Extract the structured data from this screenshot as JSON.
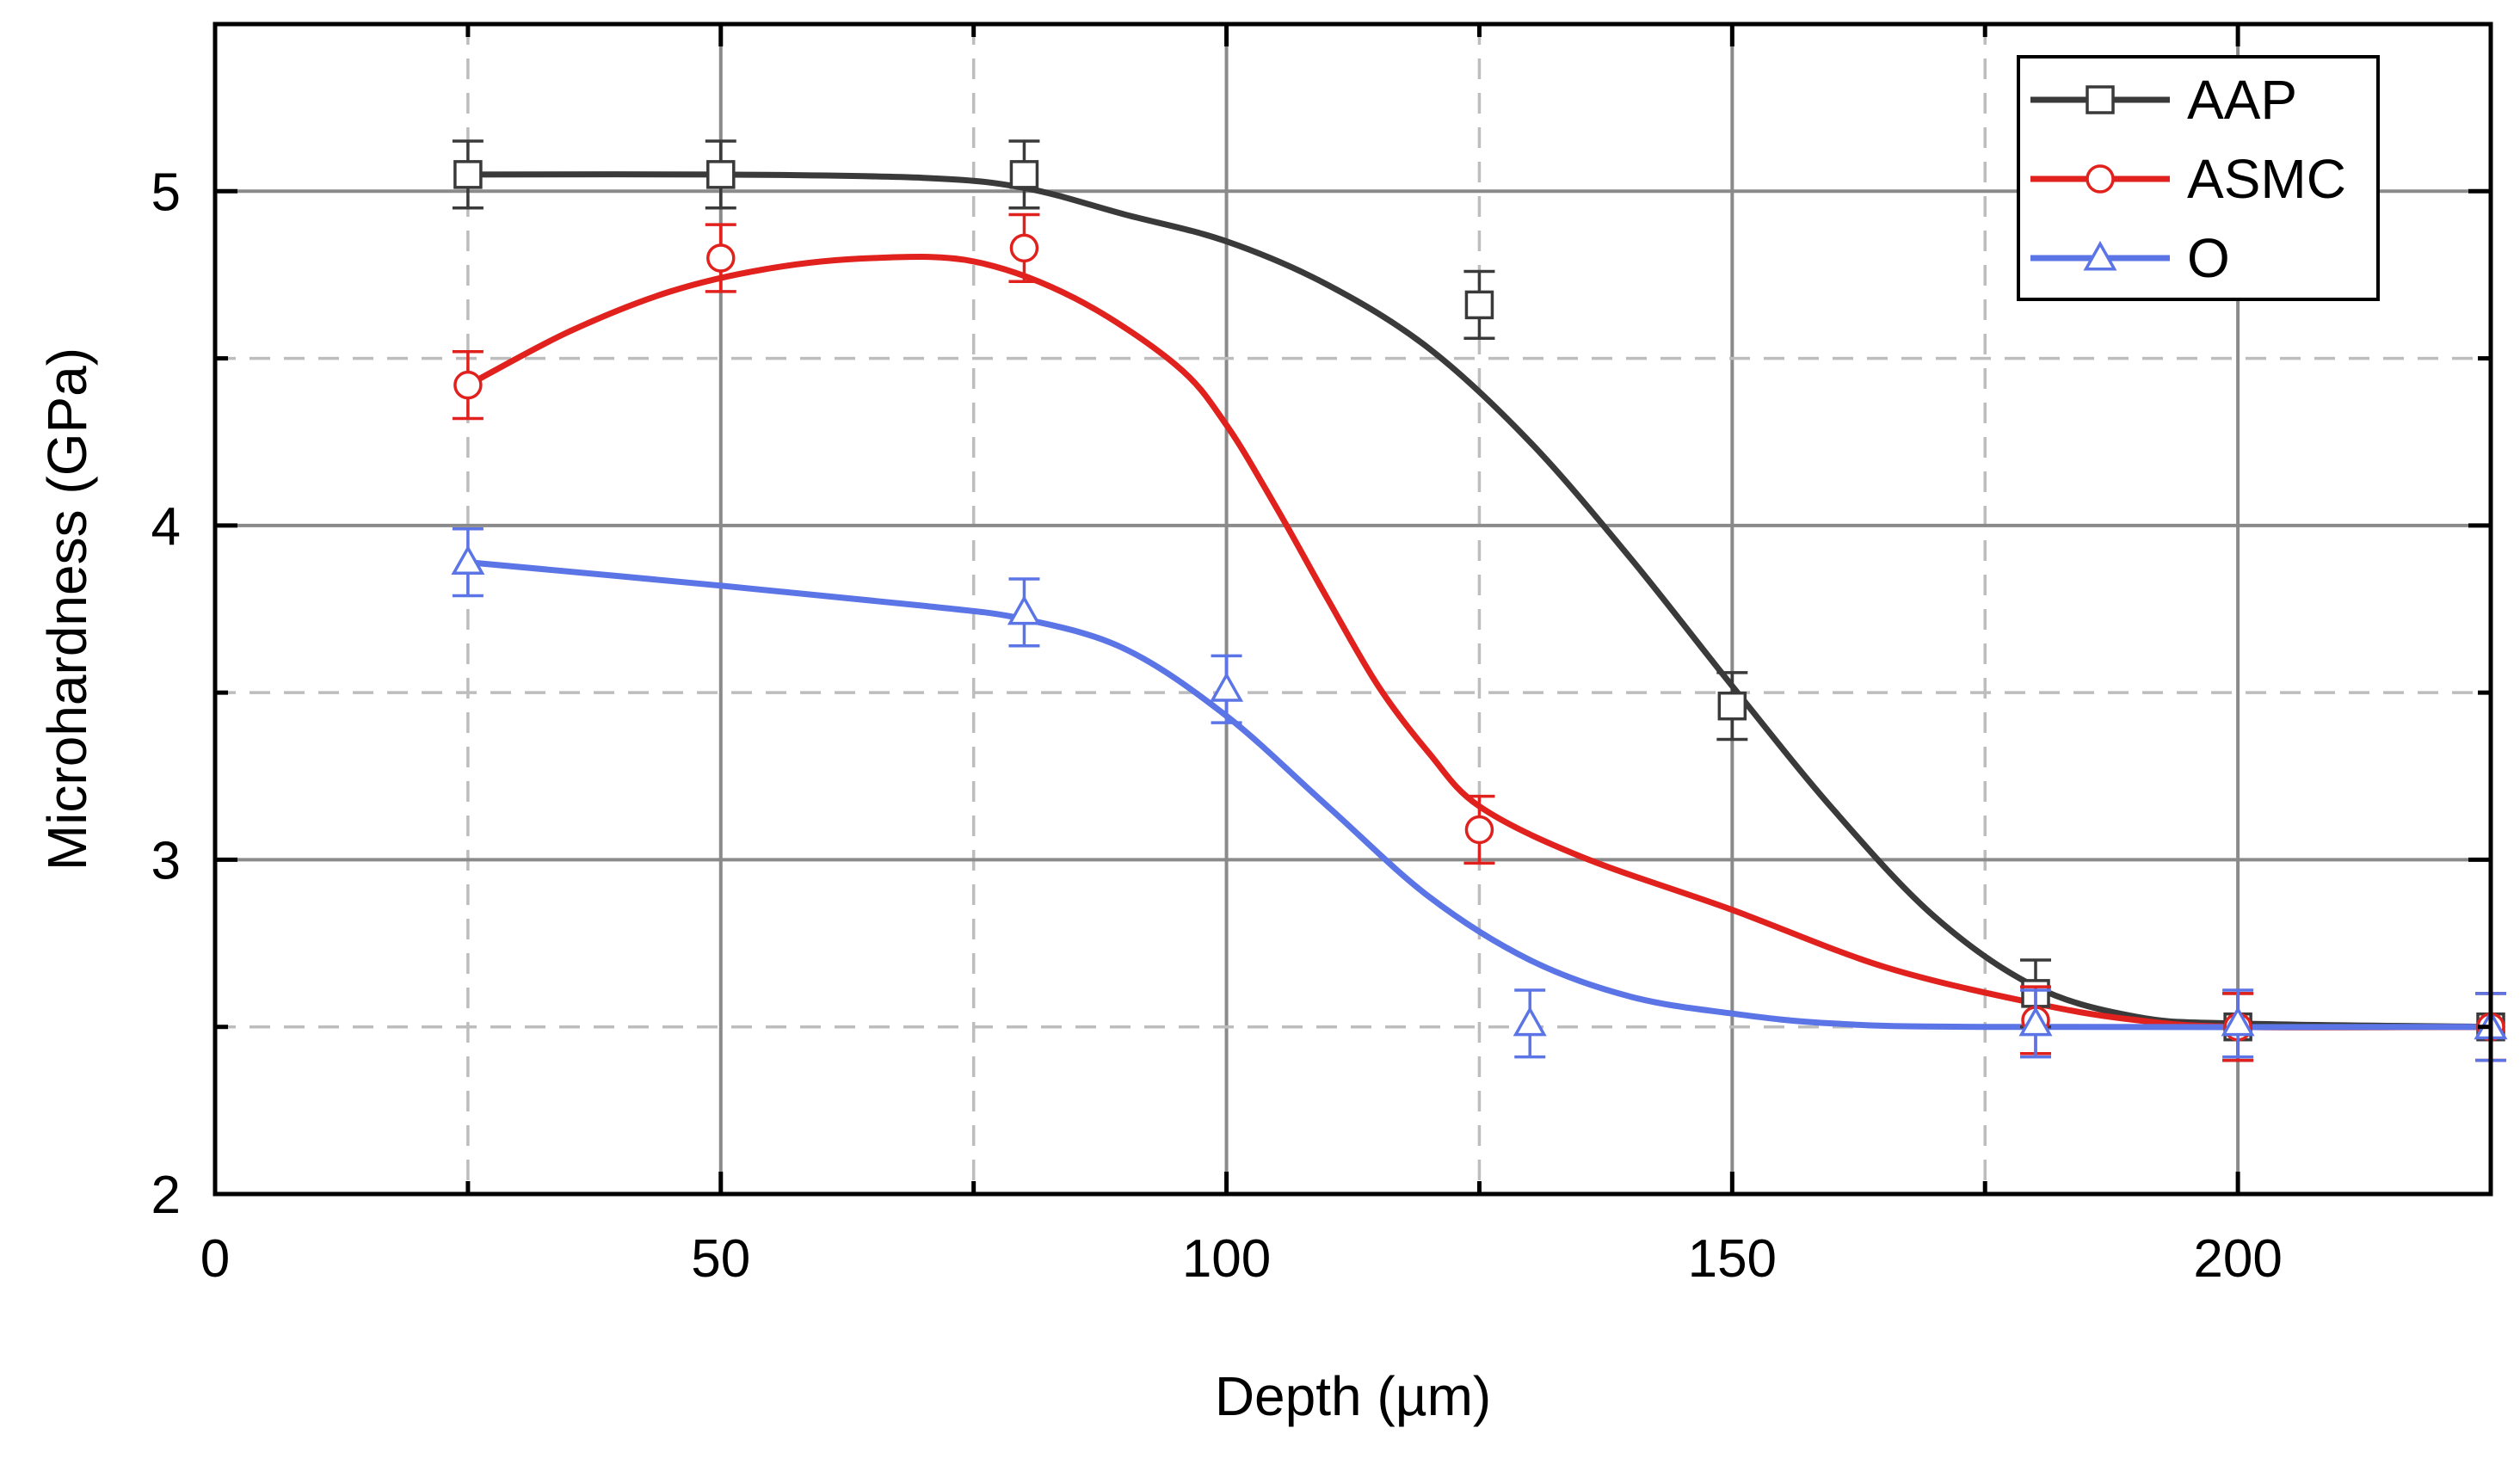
{
  "chart_data": {
    "type": "scatter",
    "title": "",
    "xlabel": "Depth (µm)",
    "ylabel": "Microhardness (GPa)",
    "xlim": [
      0,
      225
    ],
    "ylim": [
      2,
      5.5
    ],
    "x_ticks": [
      "0",
      "50",
      "100",
      "150",
      "200"
    ],
    "y_ticks": [
      "2",
      "3",
      "4",
      "5"
    ],
    "grid": true,
    "legend_position": "top-right",
    "series": [
      {
        "name": "AAP",
        "color": "#3a3a3a",
        "marker": "square",
        "points": [
          {
            "x": 25,
            "y": 5.05,
            "err": 0.1
          },
          {
            "x": 50,
            "y": 5.05,
            "err": 0.1
          },
          {
            "x": 80,
            "y": 5.05,
            "err": 0.1
          },
          {
            "x": 125,
            "y": 4.66,
            "err": 0.1
          },
          {
            "x": 150,
            "y": 3.46,
            "err": 0.1
          },
          {
            "x": 180,
            "y": 2.6,
            "err": 0.1
          },
          {
            "x": 200,
            "y": 2.5,
            "err": 0.1
          },
          {
            "x": 225,
            "y": 2.5,
            "err": 0.1
          }
        ],
        "fit": [
          [
            25,
            5.05
          ],
          [
            50,
            5.05
          ],
          [
            70,
            5.04
          ],
          [
            80,
            5.01
          ],
          [
            90,
            4.93
          ],
          [
            100,
            4.85
          ],
          [
            110,
            4.72
          ],
          [
            120,
            4.53
          ],
          [
            130,
            4.25
          ],
          [
            140,
            3.9
          ],
          [
            150,
            3.52
          ],
          [
            160,
            3.15
          ],
          [
            170,
            2.83
          ],
          [
            180,
            2.62
          ],
          [
            190,
            2.53
          ],
          [
            200,
            2.51
          ],
          [
            225,
            2.5
          ]
        ]
      },
      {
        "name": "ASMC",
        "color": "#e0211d",
        "marker": "circle",
        "points": [
          {
            "x": 25,
            "y": 4.42,
            "err": 0.1
          },
          {
            "x": 50,
            "y": 4.8,
            "err": 0.1
          },
          {
            "x": 80,
            "y": 4.83,
            "err": 0.1
          },
          {
            "x": 125,
            "y": 3.09,
            "err": 0.1
          },
          {
            "x": 180,
            "y": 2.52,
            "err": 0.1
          },
          {
            "x": 200,
            "y": 2.5,
            "err": 0.1
          },
          {
            "x": 225,
            "y": 2.5,
            "err": 0.1
          }
        ],
        "fit": [
          [
            25,
            4.42
          ],
          [
            35,
            4.58
          ],
          [
            45,
            4.7
          ],
          [
            55,
            4.77
          ],
          [
            65,
            4.8
          ],
          [
            75,
            4.79
          ],
          [
            85,
            4.68
          ],
          [
            95,
            4.48
          ],
          [
            100,
            4.3
          ],
          [
            105,
            4.05
          ],
          [
            110,
            3.78
          ],
          [
            115,
            3.52
          ],
          [
            120,
            3.32
          ],
          [
            125,
            3.16
          ],
          [
            135,
            3.01
          ],
          [
            150,
            2.85
          ],
          [
            165,
            2.68
          ],
          [
            180,
            2.57
          ],
          [
            190,
            2.52
          ],
          [
            200,
            2.5
          ],
          [
            225,
            2.5
          ]
        ]
      },
      {
        "name": "O",
        "color": "#5b74e6",
        "marker": "triangle",
        "points": [
          {
            "x": 25,
            "y": 3.89,
            "err": 0.1
          },
          {
            "x": 80,
            "y": 3.74,
            "err": 0.1
          },
          {
            "x": 100,
            "y": 3.51,
            "err": 0.1
          },
          {
            "x": 130,
            "y": 2.51,
            "err": 0.1
          },
          {
            "x": 180,
            "y": 2.51,
            "err": 0.1
          },
          {
            "x": 200,
            "y": 2.51,
            "err": 0.1
          },
          {
            "x": 225,
            "y": 2.5,
            "err": 0.1
          }
        ],
        "fit": [
          [
            25,
            3.89
          ],
          [
            50,
            3.82
          ],
          [
            70,
            3.76
          ],
          [
            80,
            3.72
          ],
          [
            90,
            3.63
          ],
          [
            100,
            3.43
          ],
          [
            110,
            3.16
          ],
          [
            120,
            2.89
          ],
          [
            130,
            2.7
          ],
          [
            140,
            2.59
          ],
          [
            150,
            2.54
          ],
          [
            160,
            2.51
          ],
          [
            175,
            2.5
          ],
          [
            225,
            2.5
          ]
        ]
      }
    ]
  }
}
